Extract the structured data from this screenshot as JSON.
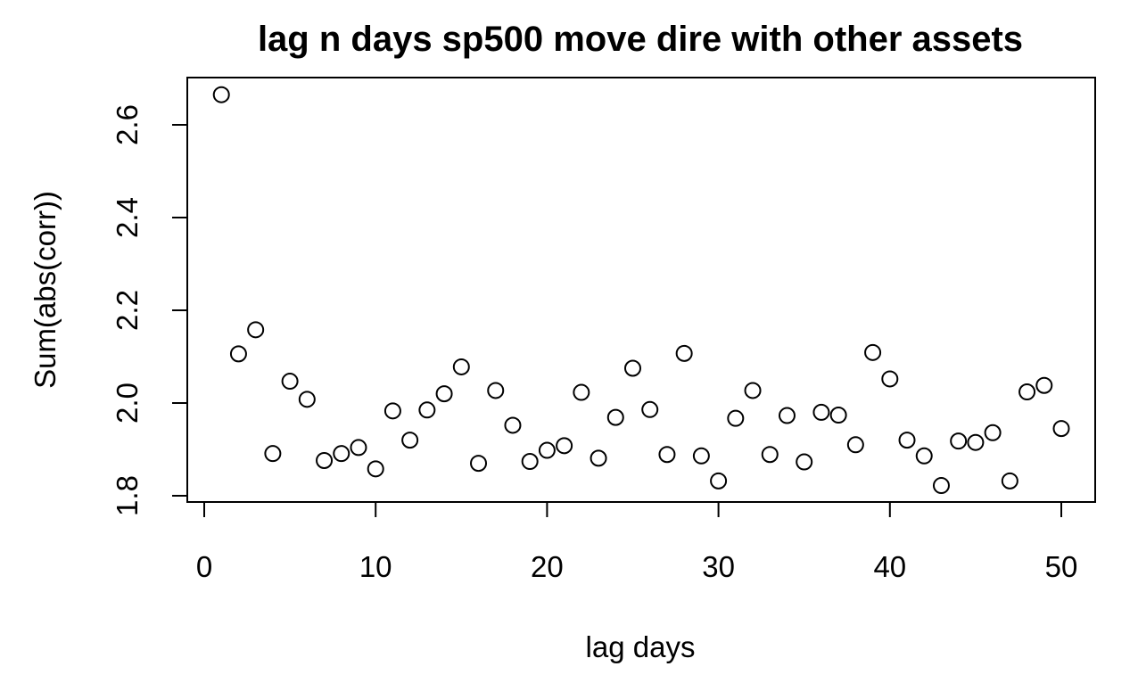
{
  "chart_data": {
    "type": "scatter",
    "title": "lag n days sp500 move dire with other assets",
    "xlabel": "lag days",
    "ylabel": "Sum(abs(corr))",
    "xlim": [
      0,
      50
    ],
    "ylim": [
      1.8,
      2.66
    ],
    "xticks": [
      0,
      10,
      20,
      30,
      40,
      50
    ],
    "xtick_labels": [
      "0",
      "10",
      "20",
      "30",
      "40",
      "50"
    ],
    "yticks": [
      1.8,
      2.0,
      2.2,
      2.4,
      2.6
    ],
    "ytick_labels": [
      "1.8",
      "2.0",
      "2.2",
      "2.4",
      "2.6"
    ],
    "grid": false,
    "marker": "open-circle",
    "x": [
      1,
      2,
      3,
      4,
      5,
      6,
      7,
      8,
      9,
      10,
      11,
      12,
      13,
      14,
      15,
      16,
      17,
      18,
      19,
      20,
      21,
      22,
      23,
      24,
      25,
      26,
      27,
      28,
      29,
      30,
      31,
      32,
      33,
      34,
      35,
      36,
      37,
      38,
      39,
      40,
      41,
      42,
      43,
      44,
      45,
      46,
      47,
      48,
      49,
      50
    ],
    "y": [
      2.665,
      2.106,
      2.158,
      1.891,
      2.047,
      2.008,
      1.876,
      1.891,
      1.904,
      1.858,
      1.983,
      1.92,
      1.985,
      2.02,
      2.078,
      1.87,
      2.027,
      1.952,
      1.874,
      1.898,
      1.908,
      2.023,
      1.881,
      1.969,
      2.075,
      1.986,
      1.889,
      2.107,
      1.886,
      1.832,
      1.967,
      2.027,
      1.889,
      1.973,
      1.873,
      1.98,
      1.974,
      1.91,
      2.109,
      2.052,
      1.92,
      1.886,
      1.822,
      1.918,
      1.915,
      1.936,
      1.832,
      2.024,
      2.038,
      1.945
    ]
  }
}
